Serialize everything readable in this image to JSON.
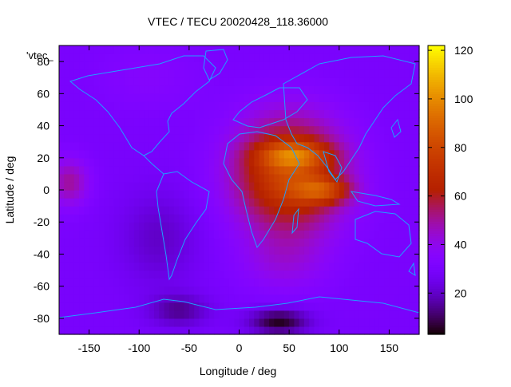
{
  "title": "VTEC / TECU 20020428_118.36000",
  "key_label": "'vtec_",
  "xaxis": {
    "label": "Longitude / deg",
    "ticks": [
      -150,
      -100,
      -50,
      0,
      50,
      100,
      150
    ],
    "range": [
      -180,
      180
    ]
  },
  "yaxis": {
    "label": "Latitude / deg",
    "ticks": [
      -80,
      -60,
      -40,
      -20,
      0,
      20,
      40,
      60,
      80
    ],
    "range": [
      -90,
      90
    ]
  },
  "colorbar": {
    "ticks": [
      20,
      40,
      60,
      80,
      100,
      120
    ],
    "range": [
      3,
      122
    ],
    "palette": "black-purple-red-orange-yellow"
  },
  "colors": {
    "coastline": "#1ea0ff",
    "axis": "#000000"
  },
  "chart_data": {
    "type": "heatmap",
    "title": "VTEC / TECU 20020428_118.36000",
    "xlabel": "Longitude / deg",
    "ylabel": "Latitude / deg",
    "xlim": [
      -180,
      180
    ],
    "ylim": [
      -90,
      90
    ],
    "zlim": [
      3,
      122
    ],
    "background_level": 30,
    "features": [
      {
        "lon": 50,
        "lat": 10,
        "slon": 55,
        "slat": 35,
        "value": 50
      },
      {
        "lon": 55,
        "lat": 22,
        "slon": 35,
        "slat": 8,
        "value": 28
      },
      {
        "lon": 85,
        "lat": 0,
        "slon": 28,
        "slat": 8,
        "value": 28
      },
      {
        "lon": 45,
        "lat": -45,
        "slon": 45,
        "slat": 20,
        "value": 10
      },
      {
        "lon": -170,
        "lat": 5,
        "slon": 20,
        "slat": 15,
        "value": 20
      },
      {
        "lon": -80,
        "lat": -30,
        "slon": 40,
        "slat": 30,
        "value": -10
      },
      {
        "lon": -90,
        "lat": 70,
        "slon": 50,
        "slat": 20,
        "value": 5
      },
      {
        "lon": 40,
        "lat": -82,
        "slon": 30,
        "slat": 8,
        "value": -25
      },
      {
        "lon": -60,
        "lat": -75,
        "slon": 30,
        "slat": 10,
        "value": -15
      }
    ]
  }
}
